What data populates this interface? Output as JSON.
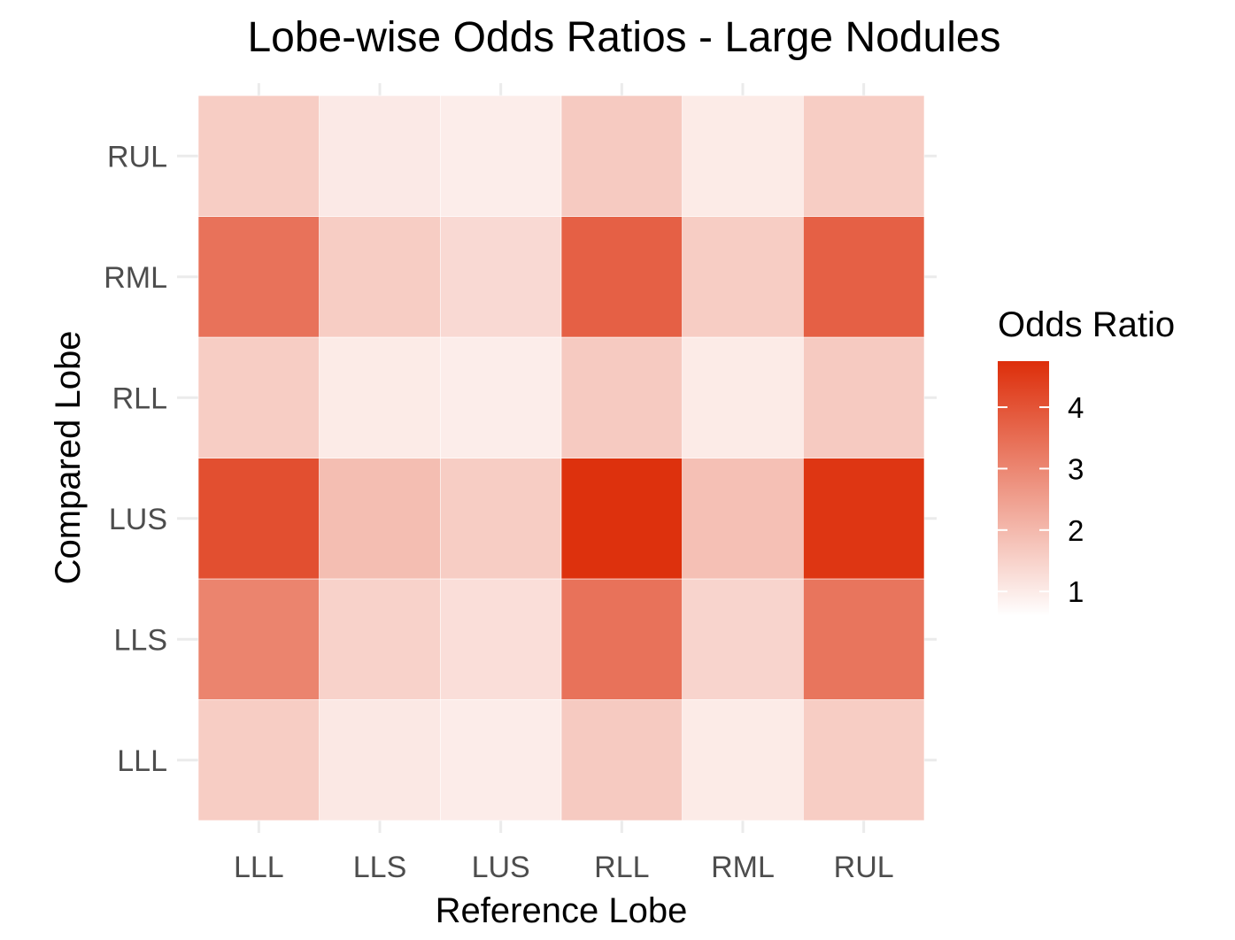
{
  "chart_data": {
    "type": "heatmap",
    "title": "Lobe-wise Odds Ratios - Large Nodules",
    "xlabel": "Reference Lobe",
    "ylabel": "Compared Lobe",
    "x_categories": [
      "LLL",
      "LLS",
      "LUS",
      "RLL",
      "RML",
      "RUL"
    ],
    "y_categories": [
      "LLL",
      "LLS",
      "LUS",
      "RLL",
      "RML",
      "RUL"
    ],
    "values": [
      [
        1.6,
        1.05,
        0.97,
        1.65,
        1.0,
        1.6
      ],
      [
        3.05,
        1.5,
        1.25,
        3.4,
        1.45,
        3.35
      ],
      [
        4.1,
        1.9,
        1.6,
        4.7,
        1.85,
        4.6
      ],
      [
        1.6,
        1.0,
        0.95,
        1.65,
        1.0,
        1.65
      ],
      [
        3.4,
        1.6,
        1.35,
        3.75,
        1.6,
        3.75
      ],
      [
        1.6,
        1.03,
        0.96,
        1.65,
        1.0,
        1.6
      ]
    ],
    "legend": {
      "title": "Odds Ratio",
      "ticks": [
        "1",
        "2",
        "3",
        "4"
      ],
      "tick_values": [
        1,
        2,
        3,
        4
      ],
      "min": 0.6,
      "max": 4.75,
      "placement": "right"
    },
    "colors": {
      "low": "#ffffff",
      "high": "#dd2e0a",
      "grid": "#ebebeb"
    },
    "grid": true
  }
}
